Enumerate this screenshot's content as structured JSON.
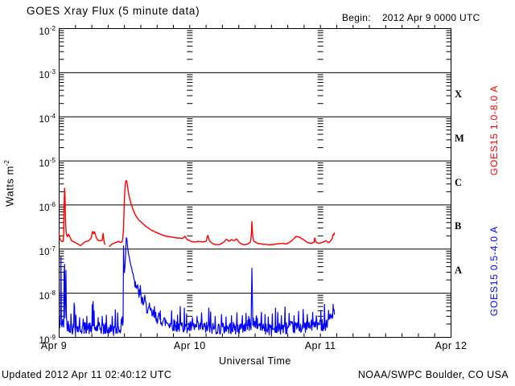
{
  "header": {
    "begin_label": "Begin:",
    "begin_value": "2012 Apr 9 0000 UTC"
  },
  "footer": {
    "updated": "Updated 2012 Apr 11 02:40:12 UTC",
    "source": "NOAA/SWPC Boulder, CO USA"
  },
  "colors": {
    "red": "#ff0000",
    "blue": "#0000ff",
    "frame": "#000000",
    "background": "#ffffff"
  },
  "chart_data": {
    "type": "line",
    "title": "GOES Xray Flux (5 minute data)",
    "xlabel": "Universal Time",
    "ylabel_base": "Watts m",
    "ylabel_exp": "-2",
    "y_scale": "log",
    "ylim": [
      1e-09,
      0.01
    ],
    "y_tick_exponents": [
      -2,
      -3,
      -4,
      -5,
      -6,
      -7,
      -8,
      -9
    ],
    "xlim_days": [
      0,
      3
    ],
    "x_ticks": [
      {
        "t": 0,
        "label": "Apr 9"
      },
      {
        "t": 1,
        "label": "Apr 10"
      },
      {
        "t": 2,
        "label": "Apr 11"
      },
      {
        "t": 3,
        "label": "Apr 12"
      }
    ],
    "day_boundaries": [
      1,
      2
    ],
    "hour_tick_step_days": 0.125,
    "grid": {
      "horizontal_decades": true,
      "legend_position": "right-rotated"
    },
    "flare_classes": [
      {
        "label": "X",
        "flux": 0.0003162
      },
      {
        "label": "M",
        "flux": 3.162e-05
      },
      {
        "label": "C",
        "flux": 3.162e-06
      },
      {
        "label": "B",
        "flux": 3.162e-07
      },
      {
        "label": "A",
        "flux": 3.162e-08
      }
    ],
    "t_end_days": 2.111,
    "sample_minutes": 5,
    "series": [
      {
        "name": "GOES15 1.0-8.0 A",
        "color": "#ff0000",
        "noise_decades": 0.02,
        "seed": 11,
        "gaps": [
          [
            0.354,
            0.384
          ]
        ],
        "spikes": [],
        "keypoints": [
          [
            0.0,
            2.3e-07
          ],
          [
            0.004,
            1.7e-07
          ],
          [
            0.02,
            1.5e-07
          ],
          [
            0.033,
            1.5e-07
          ],
          [
            0.036,
            3e-07
          ],
          [
            0.04,
            2.4e-06
          ],
          [
            0.044,
            2.4e-06
          ],
          [
            0.048,
            5e-07
          ],
          [
            0.053,
            2.4e-07
          ],
          [
            0.062,
            1.9e-07
          ],
          [
            0.072,
            2.2e-07
          ],
          [
            0.082,
            1.9e-07
          ],
          [
            0.095,
            1.55e-07
          ],
          [
            0.125,
            1.4e-07
          ],
          [
            0.165,
            1.2e-07
          ],
          [
            0.195,
            1.45e-07
          ],
          [
            0.225,
            1.55e-07
          ],
          [
            0.245,
            1.75e-07
          ],
          [
            0.256,
            2.6e-07
          ],
          [
            0.263,
            2.2e-07
          ],
          [
            0.27,
            2.5e-07
          ],
          [
            0.282,
            1.9e-07
          ],
          [
            0.295,
            1.6e-07
          ],
          [
            0.32,
            1.55e-07
          ],
          [
            0.33,
            1.6e-07
          ],
          [
            0.336,
            2.4e-07
          ],
          [
            0.342,
            1.55e-07
          ],
          [
            0.352,
            1.25e-07
          ],
          [
            0.37,
            1e-07
          ],
          [
            0.385,
            1.15e-07
          ],
          [
            0.405,
            1.3e-07
          ],
          [
            0.43,
            1.4e-07
          ],
          [
            0.455,
            1.5e-07
          ],
          [
            0.47,
            1.4e-07
          ],
          [
            0.485,
            1.5e-07
          ],
          [
            0.493,
            3e-07
          ],
          [
            0.5,
            1.5e-06
          ],
          [
            0.508,
            3.3e-06
          ],
          [
            0.513,
            3.6e-06
          ],
          [
            0.518,
            3.4e-06
          ],
          [
            0.524,
            2.6e-06
          ],
          [
            0.535,
            1.6e-06
          ],
          [
            0.548,
            1.15e-06
          ],
          [
            0.565,
            8e-07
          ],
          [
            0.585,
            5.8e-07
          ],
          [
            0.61,
            4.6e-07
          ],
          [
            0.64,
            3.8e-07
          ],
          [
            0.67,
            3.2e-07
          ],
          [
            0.7,
            2.75e-07
          ],
          [
            0.735,
            2.45e-07
          ],
          [
            0.77,
            2.2e-07
          ],
          [
            0.81,
            2e-07
          ],
          [
            0.85,
            1.9e-07
          ],
          [
            0.9,
            1.8e-07
          ],
          [
            0.945,
            1.75e-07
          ],
          [
            0.962,
            1.95e-07
          ],
          [
            0.98,
            1.65e-07
          ],
          [
            1.01,
            1.5e-07
          ],
          [
            1.035,
            1.45e-07
          ],
          [
            1.065,
            1.5e-07
          ],
          [
            1.095,
            1.45e-07
          ],
          [
            1.125,
            1.5e-07
          ],
          [
            1.138,
            2.1e-07
          ],
          [
            1.15,
            1.55e-07
          ],
          [
            1.18,
            1.3e-07
          ],
          [
            1.22,
            1.25e-07
          ],
          [
            1.255,
            1.4e-07
          ],
          [
            1.282,
            1.7e-07
          ],
          [
            1.3,
            1.5e-07
          ],
          [
            1.318,
            1.65e-07
          ],
          [
            1.34,
            1.55e-07
          ],
          [
            1.358,
            1.7e-07
          ],
          [
            1.38,
            1.4e-07
          ],
          [
            1.41,
            1.25e-07
          ],
          [
            1.445,
            1.3e-07
          ],
          [
            1.465,
            1.45e-07
          ],
          [
            1.471,
            2e-07
          ],
          [
            1.476,
            4.5e-07
          ],
          [
            1.481,
            2e-07
          ],
          [
            1.49,
            1.5e-07
          ],
          [
            1.52,
            1.35e-07
          ],
          [
            1.56,
            1.3e-07
          ],
          [
            1.61,
            1.25e-07
          ],
          [
            1.66,
            1.3e-07
          ],
          [
            1.705,
            1.35e-07
          ],
          [
            1.74,
            1.3e-07
          ],
          [
            1.775,
            1.5e-07
          ],
          [
            1.815,
            1.95e-07
          ],
          [
            1.845,
            1.85e-07
          ],
          [
            1.875,
            1.6e-07
          ],
          [
            1.905,
            1.4e-07
          ],
          [
            1.93,
            1.35e-07
          ],
          [
            1.952,
            1.45e-07
          ],
          [
            1.957,
            1.9e-07
          ],
          [
            1.963,
            1.45e-07
          ],
          [
            1.99,
            1.35e-07
          ],
          [
            2.02,
            1.45e-07
          ],
          [
            2.045,
            1.55e-07
          ],
          [
            2.06,
            1.4e-07
          ],
          [
            2.075,
            1.5e-07
          ],
          [
            2.09,
            1.7e-07
          ],
          [
            2.098,
            2.2e-07
          ],
          [
            2.104,
            2.1e-07
          ],
          [
            2.111,
            2.5e-07
          ]
        ]
      },
      {
        "name": "GOES15 0.5-4.0 A",
        "color": "#0000ff",
        "noise_decades": 0.14,
        "seed": 42,
        "gaps": [],
        "keypoints": [
          [
            0.0,
            1.6e-09
          ],
          [
            0.01,
            1.8e-09
          ],
          [
            0.0135,
            1.1e-07
          ],
          [
            0.017,
            2e-09
          ],
          [
            0.036,
            2e-09
          ],
          [
            0.04,
            2.3e-07
          ],
          [
            0.0445,
            2.5e-09
          ],
          [
            0.052,
            3.5e-08
          ],
          [
            0.056,
            2e-09
          ],
          [
            0.1,
            1.6e-09
          ],
          [
            0.2,
            1.6e-09
          ],
          [
            0.3,
            1.6e-09
          ],
          [
            0.4,
            1.5e-09
          ],
          [
            0.46,
            1.5e-09
          ],
          [
            0.48,
            2e-09
          ],
          [
            0.4895,
            2.5e-09
          ],
          [
            0.493,
            1.2e-07
          ],
          [
            0.498,
            2.5e-08
          ],
          [
            0.506,
            5e-08
          ],
          [
            0.515,
            2.2e-07
          ],
          [
            0.5215,
            1.3e-07
          ],
          [
            0.53,
            8e-08
          ],
          [
            0.542,
            5.5e-08
          ],
          [
            0.556,
            3.6e-08
          ],
          [
            0.575,
            2.1e-08
          ],
          [
            0.6,
            1.2e-08
          ],
          [
            0.635,
            7e-09
          ],
          [
            0.67,
            4.8e-09
          ],
          [
            0.71,
            3.4e-09
          ],
          [
            0.76,
            2.7e-09
          ],
          [
            0.82,
            2.2e-09
          ],
          [
            0.9,
            1.8e-09
          ],
          [
            1.0,
            1.7e-09
          ],
          [
            1.2,
            1.6e-09
          ],
          [
            1.4,
            1.6e-09
          ],
          [
            1.469,
            2e-09
          ],
          [
            1.4755,
            3.9e-08
          ],
          [
            1.482,
            2.2e-09
          ],
          [
            1.6,
            1.5e-09
          ],
          [
            1.8,
            1.7e-09
          ],
          [
            1.95,
            1.8e-09
          ],
          [
            2.05,
            2e-09
          ],
          [
            2.111,
            4e-09
          ]
        ],
        "spikes": [
          [
            0.09,
            3.4e-09
          ],
          [
            0.113,
            6e-09
          ],
          [
            0.118,
            5e-09
          ],
          [
            0.128,
            3.2e-09
          ],
          [
            0.155,
            2.8e-09
          ],
          [
            0.185,
            2.6e-09
          ],
          [
            0.213,
            3e-09
          ],
          [
            0.252,
            5.5e-09
          ],
          [
            0.262,
            6.5e-09
          ],
          [
            0.268,
            4e-09
          ],
          [
            0.3,
            2.8e-09
          ],
          [
            0.33,
            3e-09
          ],
          [
            0.36,
            3.2e-09
          ],
          [
            0.405,
            3e-09
          ],
          [
            0.432,
            4.2e-09
          ],
          [
            0.447,
            3.6e-09
          ],
          [
            0.62,
            1.5e-08
          ],
          [
            0.655,
            9e-09
          ],
          [
            0.69,
            6e-09
          ],
          [
            0.73,
            5e-09
          ],
          [
            0.775,
            4e-09
          ],
          [
            0.86,
            4e-09
          ],
          [
            0.905,
            3.2e-09
          ],
          [
            0.928,
            5e-09
          ],
          [
            0.958,
            4.6e-09
          ],
          [
            0.975,
            3.4e-09
          ],
          [
            1.02,
            2.8e-09
          ],
          [
            1.055,
            3e-09
          ],
          [
            1.09,
            3.6e-09
          ],
          [
            1.145,
            4.6e-09
          ],
          [
            1.16,
            3.8e-09
          ],
          [
            1.195,
            3e-09
          ],
          [
            1.243,
            3.3e-09
          ],
          [
            1.278,
            2.9e-09
          ],
          [
            1.32,
            3.1e-09
          ],
          [
            1.36,
            3.6e-09
          ],
          [
            1.402,
            3.1e-09
          ],
          [
            1.43,
            3.5e-09
          ],
          [
            1.452,
            3e-09
          ],
          [
            1.51,
            3.1e-09
          ],
          [
            1.548,
            3.7e-09
          ],
          [
            1.575,
            3.3e-09
          ],
          [
            1.6,
            2.9e-09
          ],
          [
            1.632,
            3.4e-09
          ],
          [
            1.655,
            4.6e-09
          ],
          [
            1.672,
            3.7e-09
          ],
          [
            1.7,
            3.1e-09
          ],
          [
            1.73,
            4.9e-09
          ],
          [
            1.762,
            3.5e-09
          ],
          [
            1.8,
            3.1e-09
          ],
          [
            1.832,
            3.9e-09
          ],
          [
            1.867,
            4.3e-09
          ],
          [
            1.9,
            3.3e-09
          ],
          [
            1.942,
            3.7e-09
          ],
          [
            1.97,
            3.1e-09
          ],
          [
            2.003,
            4.1e-09
          ],
          [
            2.032,
            5.6e-09
          ],
          [
            2.062,
            4.1e-09
          ],
          [
            2.078,
            3.4e-09
          ],
          [
            2.096,
            5.6e-09
          ]
        ]
      }
    ]
  }
}
